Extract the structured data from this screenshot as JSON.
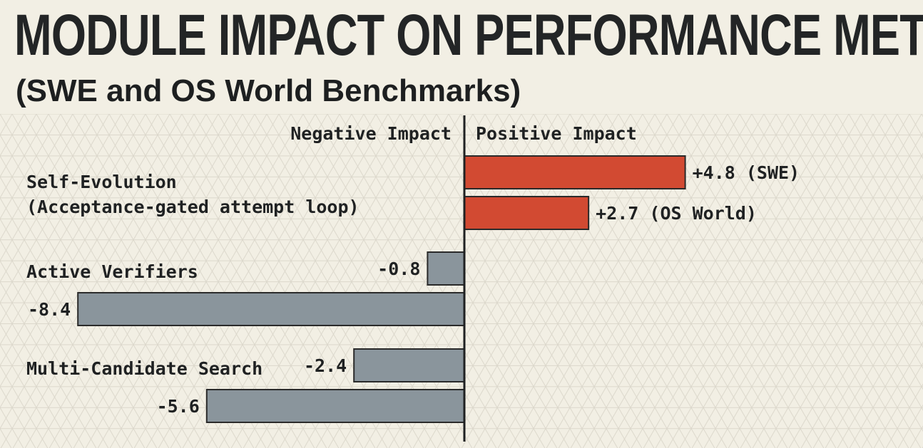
{
  "title": "MODULE IMPACT ON PERFORMANCE METRICS",
  "subtitle": "(SWE and OS World Benchmarks)",
  "colors": {
    "positive": "#d24a32",
    "negative": "#8a959c",
    "outline": "#2a2a2a",
    "background": "#f2efe4",
    "grid": "#dcd8cc"
  },
  "chart_data": {
    "type": "bar",
    "orientation": "horizontal",
    "grid": true,
    "direction_labels": {
      "negative": "Negative Impact",
      "positive": "Positive Impact"
    },
    "groups": [
      {
        "label_lines": [
          "Self-Evolution",
          "(Acceptance-gated attempt loop)"
        ],
        "bars": [
          {
            "value": 4.8,
            "label": "+4.8 (SWE)"
          },
          {
            "value": 2.7,
            "label": "+2.7 (OS World)"
          }
        ]
      },
      {
        "label_lines": [
          "Active Verifiers"
        ],
        "bars": [
          {
            "value": -0.8,
            "label": "-0.8"
          },
          {
            "value": -8.4,
            "label": "-8.4"
          }
        ]
      },
      {
        "label_lines": [
          "Multi-Candidate Search"
        ],
        "bars": [
          {
            "value": -2.4,
            "label": "-2.4"
          },
          {
            "value": -5.6,
            "label": "-5.6"
          }
        ]
      }
    ]
  }
}
